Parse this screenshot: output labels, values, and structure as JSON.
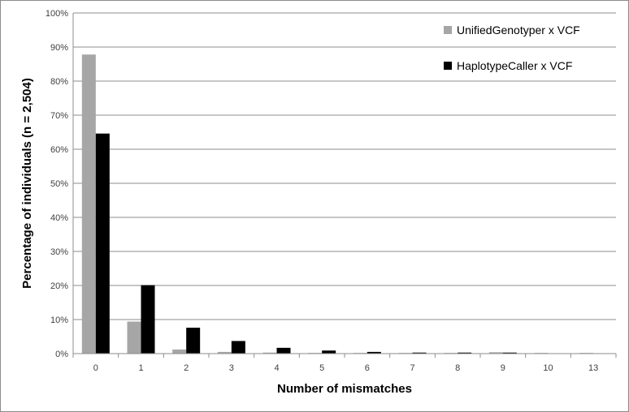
{
  "chart_data": {
    "type": "bar",
    "xlabel": "Number of mismatches",
    "ylabel": "Percentage of individuals (n = 2,504)",
    "categories": [
      "0",
      "1",
      "2",
      "3",
      "4",
      "5",
      "6",
      "7",
      "8",
      "9",
      "10",
      "13"
    ],
    "series": [
      {
        "name": "UnifiedGenotyper x VCF",
        "color": "#a6a6a6",
        "values": [
          87.8,
          9.4,
          1.2,
          0.5,
          0.3,
          0.2,
          0.2,
          0.2,
          0.2,
          0.4,
          0.2,
          0.2
        ]
      },
      {
        "name": "HaplotypeCaller x VCF",
        "color": "#000000",
        "values": [
          64.6,
          20.1,
          7.6,
          3.7,
          1.7,
          0.9,
          0.5,
          0.3,
          0.3,
          0.3,
          0.0,
          0.0
        ]
      }
    ],
    "ylim": [
      0,
      100
    ],
    "yticks": [
      "0%",
      "10%",
      "20%",
      "30%",
      "40%",
      "50%",
      "60%",
      "70%",
      "80%",
      "90%",
      "100%"
    ],
    "grid": true,
    "legend_position": "top-right"
  }
}
